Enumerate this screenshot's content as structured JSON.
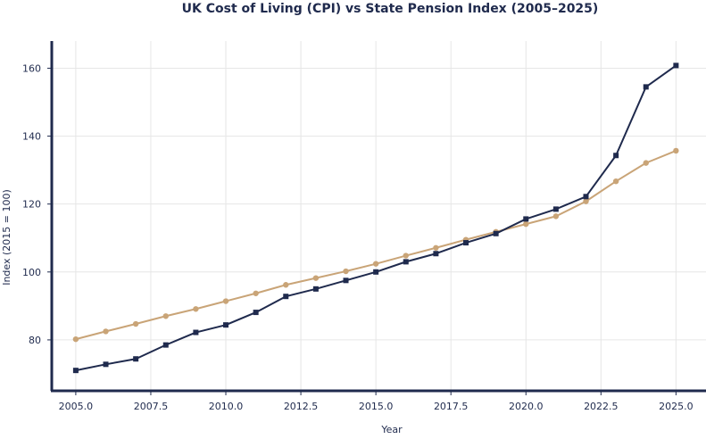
{
  "chart_data": {
    "type": "line",
    "title": "UK Cost of Living (CPI) vs State Pension Index (2005–2025)",
    "xlabel": "Year",
    "ylabel": "Index (2015 = 100)",
    "xlim": [
      2004.2,
      2026.0
    ],
    "ylim": [
      65,
      168
    ],
    "grid": true,
    "x_ticks": [
      2005.0,
      2007.5,
      2010.0,
      2012.5,
      2015.0,
      2017.5,
      2020.0,
      2022.5,
      2025.0
    ],
    "x_tick_labels": [
      "2005.0",
      "2007.5",
      "2010.0",
      "2012.5",
      "2015.0",
      "2017.5",
      "2020.0",
      "2022.5",
      "2025.0"
    ],
    "y_ticks": [
      80,
      100,
      120,
      140,
      160
    ],
    "y_tick_labels": [
      "80",
      "100",
      "120",
      "140",
      "160"
    ],
    "x": [
      2005,
      2006,
      2007,
      2008,
      2009,
      2010,
      2011,
      2012,
      2013,
      2014,
      2015,
      2016,
      2017,
      2018,
      2019,
      2020,
      2021,
      2022,
      2023,
      2024,
      2025
    ],
    "series": [
      {
        "name": "CPI",
        "color": "#1f2a4d",
        "marker": "square",
        "values": [
          71.0,
          72.8,
          74.4,
          78.5,
          82.2,
          84.4,
          88.1,
          92.8,
          95.0,
          97.5,
          100.0,
          103.0,
          105.4,
          108.6,
          111.3,
          115.6,
          118.5,
          122.2,
          134.3,
          154.5,
          160.8
        ]
      },
      {
        "name": "State Pension Index",
        "color": "#c9a477",
        "marker": "circle",
        "values": [
          80.2,
          82.5,
          84.7,
          87.0,
          89.1,
          91.4,
          93.7,
          96.2,
          98.2,
          100.2,
          102.4,
          104.8,
          107.1,
          109.5,
          111.8,
          114.1,
          116.4,
          120.8,
          126.7,
          132.1,
          135.7
        ]
      }
    ]
  }
}
